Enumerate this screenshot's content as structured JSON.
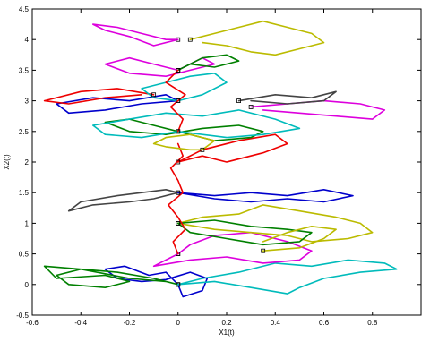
{
  "chart_data": {
    "type": "line",
    "title": "",
    "xlabel": "X1(t)",
    "ylabel": "X2(t)",
    "xlim": [
      -0.6,
      1.0
    ],
    "ylim": [
      -0.5,
      4.5
    ],
    "x_ticks": [
      -0.6,
      -0.4,
      -0.2,
      0,
      0.2,
      0.4,
      0.6,
      0.8
    ],
    "x_tick_labels": [
      "-0.6",
      "-0.4",
      "-0.2",
      "0",
      "0.2",
      "0.4",
      "0.6",
      "0.8"
    ],
    "y_ticks": [
      -0.5,
      0,
      0.5,
      1,
      1.5,
      2,
      2.5,
      3,
      3.5,
      4,
      4.5
    ],
    "y_tick_labels": [
      "-0.5",
      "0",
      "0.5",
      "1",
      "1.5",
      "2",
      "2.5",
      "3",
      "3.5",
      "4",
      "4.5"
    ],
    "grid": false,
    "series": [
      {
        "color": "#0000cc",
        "x": [
          0,
          -0.05,
          -0.12,
          -0.22,
          -0.3,
          -0.25,
          -0.15,
          -0.05,
          0.05,
          0.12,
          0.1,
          0.02,
          0
        ],
        "y": [
          0,
          0.2,
          0.15,
          0.3,
          0.25,
          0.1,
          0.05,
          0.08,
          0.2,
          0.1,
          -0.1,
          -0.2,
          0
        ]
      },
      {
        "color": "#008000",
        "x": [
          0,
          -0.1,
          -0.25,
          -0.4,
          -0.5,
          -0.45,
          -0.3,
          -0.2,
          -0.3,
          -0.5,
          -0.55,
          -0.4,
          -0.2,
          -0.05,
          0
        ],
        "y": [
          0,
          0.1,
          0.2,
          0.25,
          0.15,
          0,
          -0.05,
          0.05,
          0.15,
          0.1,
          0.3,
          0.25,
          0.1,
          0.05,
          0
        ]
      },
      {
        "color": "#00bbbb",
        "x": [
          0,
          0.1,
          0.25,
          0.4,
          0.55,
          0.7,
          0.85,
          0.9,
          0.75,
          0.6,
          0.5,
          0.45,
          0.3,
          0.15,
          0
        ],
        "y": [
          0,
          0.1,
          0.2,
          0.35,
          0.3,
          0.4,
          0.35,
          0.25,
          0.2,
          0.1,
          -0.05,
          -0.15,
          -0.05,
          0.05,
          0
        ]
      },
      {
        "color": "#dd00dd",
        "x": [
          0,
          0.05,
          0.15,
          0.3,
          0.45,
          0.55,
          0.5,
          0.35,
          0.2,
          0.05,
          -0.1,
          -0.05,
          0
        ],
        "y": [
          0.5,
          0.65,
          0.8,
          0.85,
          0.7,
          0.55,
          0.4,
          0.35,
          0.45,
          0.4,
          0.3,
          0.4,
          0.5
        ]
      },
      {
        "color": "#bbbb00",
        "x": [
          0,
          0.1,
          0.25,
          0.35,
          0.5,
          0.65,
          0.75,
          0.8,
          0.7,
          0.55,
          0.45,
          0.3,
          0.15,
          0
        ],
        "y": [
          1,
          1.1,
          1.15,
          1.3,
          1.2,
          1.1,
          1.0,
          0.85,
          0.75,
          0.7,
          0.8,
          0.85,
          0.9,
          1
        ]
      },
      {
        "color": "#008000",
        "x": [
          0,
          0.15,
          0.3,
          0.45,
          0.55,
          0.5,
          0.35,
          0.2,
          0.05,
          0
        ],
        "y": [
          1,
          1.05,
          0.95,
          0.9,
          0.85,
          0.7,
          0.65,
          0.75,
          0.85,
          1
        ]
      },
      {
        "color": "#444444",
        "x": [
          0,
          -0.1,
          -0.2,
          -0.35,
          -0.45,
          -0.4,
          -0.25,
          -0.15,
          -0.05,
          0
        ],
        "y": [
          1.5,
          1.4,
          1.35,
          1.3,
          1.2,
          1.35,
          1.45,
          1.5,
          1.55,
          1.5
        ]
      },
      {
        "color": "#0000cc",
        "x": [
          0,
          0.15,
          0.3,
          0.45,
          0.6,
          0.72,
          0.6,
          0.45,
          0.3,
          0.15,
          0
        ],
        "y": [
          1.5,
          1.45,
          1.5,
          1.45,
          1.55,
          1.45,
          1.35,
          1.4,
          1.35,
          1.4,
          1.5
        ]
      },
      {
        "color": "#ee0000",
        "x": [
          0,
          -0.02,
          0.03,
          0.0,
          -0.04,
          0.02,
          0.0,
          -0.03,
          0.02,
          0
        ],
        "y": [
          0.5,
          0.7,
          0.9,
          1.1,
          1.3,
          1.5,
          1.7,
          1.9,
          2.1,
          2.3
        ]
      },
      {
        "color": "#ee0000",
        "x": [
          0,
          0.1,
          0.2,
          0.35,
          0.45,
          0.4,
          0.25,
          0.1,
          0
        ],
        "y": [
          2,
          2.1,
          2.0,
          2.15,
          2.3,
          2.45,
          2.35,
          2.2,
          2
        ]
      },
      {
        "color": "#008000",
        "x": [
          0,
          -0.1,
          -0.2,
          -0.3,
          -0.2,
          -0.05,
          0.1,
          0.25,
          0.35,
          0.3,
          0.15,
          0
        ],
        "y": [
          2.5,
          2.6,
          2.7,
          2.65,
          2.5,
          2.45,
          2.55,
          2.6,
          2.5,
          2.4,
          2.35,
          2.5
        ]
      },
      {
        "color": "#00bbbb",
        "x": [
          0,
          -0.15,
          -0.3,
          -0.35,
          -0.2,
          -0.05,
          0.1,
          0.25,
          0.4,
          0.5,
          0.35,
          0.2,
          0
        ],
        "y": [
          2.5,
          2.4,
          2.45,
          2.6,
          2.7,
          2.8,
          2.75,
          2.85,
          2.7,
          2.55,
          2.45,
          2.4,
          2.5
        ]
      },
      {
        "color": "#dd00dd",
        "x": [
          0.3,
          0.45,
          0.6,
          0.75,
          0.85,
          0.8,
          0.65,
          0.5,
          0.35
        ],
        "y": [
          2.9,
          2.95,
          3.0,
          2.95,
          2.85,
          2.7,
          2.75,
          2.8,
          2.85
        ]
      },
      {
        "color": "#444444",
        "x": [
          0.25,
          0.4,
          0.55,
          0.65,
          0.6,
          0.45,
          0.3
        ],
        "y": [
          3.0,
          3.1,
          3.05,
          3.15,
          3.0,
          2.95,
          3.0
        ]
      },
      {
        "color": "#0000cc",
        "x": [
          0,
          -0.15,
          -0.3,
          -0.45,
          -0.5,
          -0.35,
          -0.2,
          -0.05,
          0
        ],
        "y": [
          3,
          2.95,
          2.85,
          2.8,
          2.95,
          3.05,
          3.0,
          3.1,
          3
        ]
      },
      {
        "color": "#ee0000",
        "x": [
          -0.1,
          -0.25,
          -0.4,
          -0.55,
          -0.45,
          -0.3,
          -0.15
        ],
        "y": [
          3.1,
          3.2,
          3.15,
          3.0,
          2.95,
          3.05,
          3.1
        ]
      },
      {
        "color": "#00bbbb",
        "x": [
          0,
          0.1,
          0.2,
          0.15,
          0.05,
          -0.05,
          -0.15,
          -0.1,
          0
        ],
        "y": [
          3,
          3.1,
          3.3,
          3.45,
          3.4,
          3.3,
          3.2,
          3.05,
          3
        ]
      },
      {
        "color": "#dd00dd",
        "x": [
          0,
          -0.1,
          -0.2,
          -0.3,
          -0.2,
          -0.05,
          0.05,
          0.15,
          0.1,
          0
        ],
        "y": [
          3.5,
          3.6,
          3.7,
          3.6,
          3.45,
          3.4,
          3.5,
          3.6,
          3.7,
          3.5
        ]
      },
      {
        "color": "#008000",
        "x": [
          0,
          0.05,
          0.15,
          0.25,
          0.2,
          0.1,
          0
        ],
        "y": [
          3.5,
          3.6,
          3.55,
          3.65,
          3.75,
          3.7,
          3.5
        ]
      },
      {
        "color": "#ee0000",
        "x": [
          0,
          -0.05,
          0.03,
          -0.03,
          0.02,
          0
        ],
        "y": [
          3.5,
          3.3,
          3.1,
          2.9,
          2.7,
          2.5
        ]
      },
      {
        "color": "#dd00dd",
        "x": [
          0,
          -0.1,
          -0.2,
          -0.3,
          -0.35,
          -0.25,
          -0.15,
          -0.05,
          0
        ],
        "y": [
          4,
          3.9,
          4.05,
          4.15,
          4.25,
          4.2,
          4.1,
          4.0,
          4
        ]
      },
      {
        "color": "#bbbb00",
        "x": [
          0.05,
          0.15,
          0.25,
          0.35,
          0.45,
          0.55,
          0.6,
          0.5,
          0.4,
          0.3,
          0.2,
          0.1
        ],
        "y": [
          4.0,
          4.1,
          4.2,
          4.3,
          4.2,
          4.1,
          3.95,
          3.85,
          3.75,
          3.8,
          3.9,
          3.95
        ]
      },
      {
        "color": "#bbbb00",
        "x": [
          0.1,
          0.15,
          0.05,
          -0.05,
          -0.1,
          -0.05,
          0.05,
          0.1
        ],
        "y": [
          2.2,
          2.35,
          2.45,
          2.4,
          2.3,
          2.25,
          2.2,
          2.2
        ]
      },
      {
        "color": "#bbbb00",
        "x": [
          0.35,
          0.5,
          0.6,
          0.65,
          0.55,
          0.45,
          0.35
        ],
        "y": [
          0.55,
          0.6,
          0.75,
          0.9,
          0.95,
          0.85,
          0.7
        ]
      }
    ]
  }
}
